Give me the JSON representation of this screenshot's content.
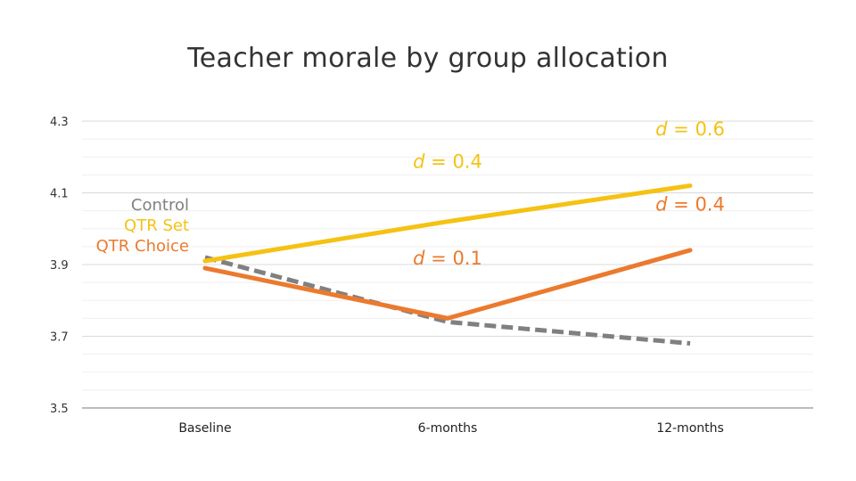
{
  "chart_data": {
    "type": "line",
    "title": "Teacher morale by group allocation",
    "categories": [
      "Baseline",
      "6-months",
      "12-months"
    ],
    "ylim": [
      3.5,
      4.3
    ],
    "yticks": [
      "4.3",
      "4.1",
      "3.9",
      "3.7",
      "3.5"
    ],
    "grid": true,
    "legend_position": "left",
    "series": [
      {
        "name": "Control",
        "values": [
          3.92,
          3.74,
          3.68
        ],
        "color": "#808080",
        "style": "dashed"
      },
      {
        "name": "QTR Set",
        "values": [
          3.91,
          4.02,
          4.12
        ],
        "color": "#F5C214",
        "style": "solid"
      },
      {
        "name": "QTR Choice",
        "values": [
          3.89,
          3.75,
          3.94
        ],
        "color": "#EB7A2E",
        "style": "solid"
      }
    ],
    "annotations": [
      {
        "series": "QTR Set",
        "x": 1,
        "y": 4.19,
        "prefix": "d",
        "text": " = 0.4",
        "color": "#F5C214"
      },
      {
        "series": "QTR Set",
        "x": 2.27,
        "y": 4.28,
        "prefix": "d",
        "text": " = 0.6",
        "color": "#F5C214"
      },
      {
        "series": "QTR Choice",
        "x": 1,
        "y": 3.92,
        "prefix": "d",
        "text": " = 0.1",
        "color": "#EB7A2E"
      },
      {
        "series": "QTR Choice",
        "x": 2.27,
        "y": 4.07,
        "prefix": "d",
        "text": " = 0.4",
        "color": "#EB7A2E"
      }
    ]
  }
}
